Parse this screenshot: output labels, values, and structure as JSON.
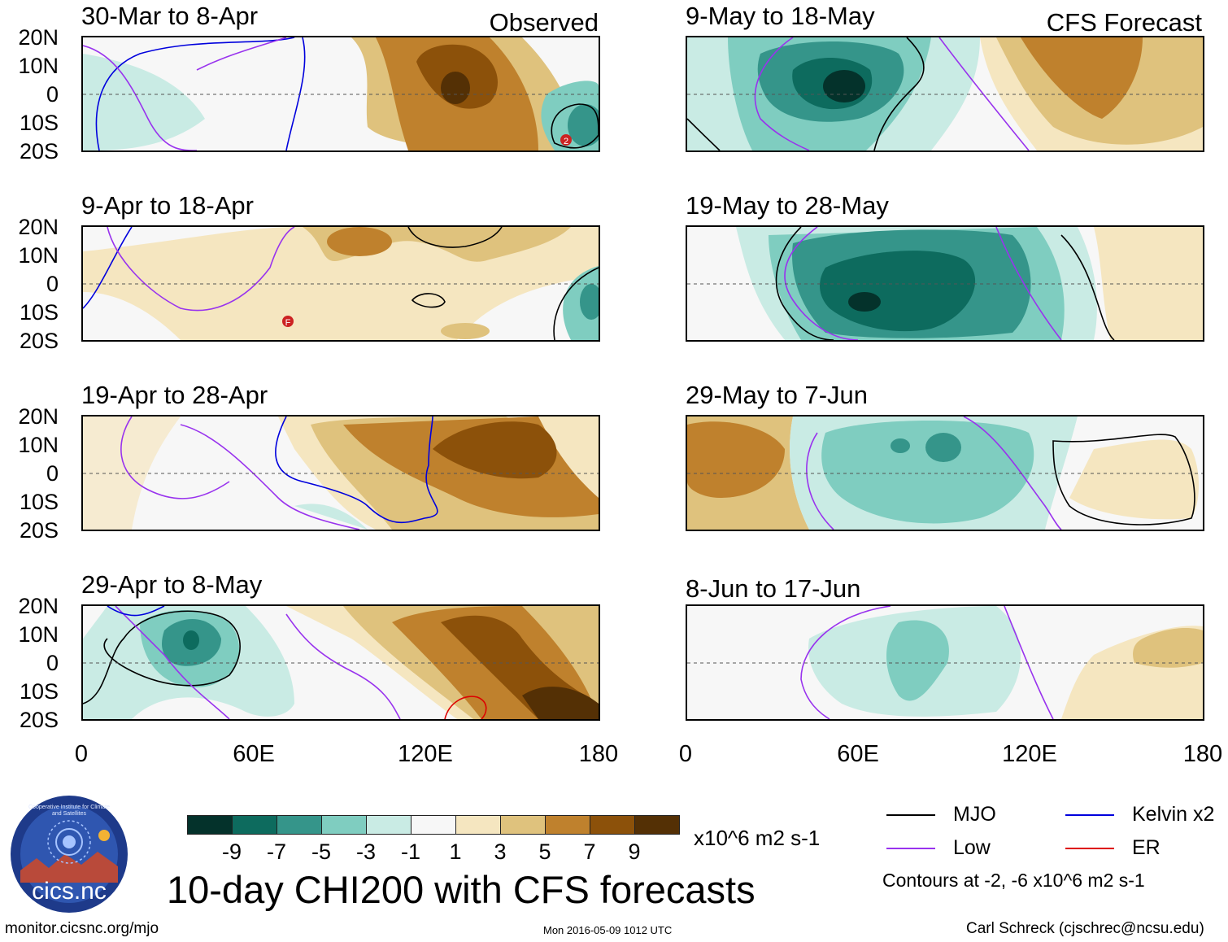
{
  "header_observed": "Observed",
  "header_forecast": "CFS Forecast",
  "panels_observed": [
    {
      "title": "30-Mar to 8-Apr"
    },
    {
      "title": "9-Apr to 18-Apr"
    },
    {
      "title": "19-Apr to 28-Apr"
    },
    {
      "title": "29-Apr to 8-May"
    }
  ],
  "panels_forecast": [
    {
      "title": "9-May to 18-May"
    },
    {
      "title": "19-May to 28-May"
    },
    {
      "title": "29-May to 7-Jun"
    },
    {
      "title": "8-Jun to 17-Jun"
    }
  ],
  "lat_ticks": [
    "20N",
    "10N",
    "0",
    "10S",
    "20S"
  ],
  "lon_ticks": [
    "0",
    "60E",
    "120E",
    "180"
  ],
  "storm_labels": [
    "2",
    "F"
  ],
  "colorbar": {
    "colors": [
      "#04322b",
      "#0d6b5e",
      "#35958a",
      "#7fcdc0",
      "#c9ebe4",
      "#f7f7f7",
      "#f5e6c0",
      "#dfc27d",
      "#bf812d",
      "#8c510a",
      "#543005"
    ],
    "labels": [
      "-9",
      "-7",
      "-5",
      "-3",
      "-1",
      "1",
      "3",
      "5",
      "7",
      "9"
    ],
    "units": "x10^6 m2 s-1"
  },
  "legend": {
    "items": [
      {
        "label": "MJO",
        "color": "#000000"
      },
      {
        "label": "Kelvin x2",
        "color": "#0000dd"
      },
      {
        "label": "Low",
        "color": "#9933ee"
      },
      {
        "label": "ER",
        "color": "#dd0000"
      }
    ],
    "contours_note": "Contours at -2, -6 x10^6 m2 s-1"
  },
  "main_title": "10-day CHI200 with CFS forecasts",
  "logo_text": "cics.nc",
  "logo_ring_text": "Cooperative Institute for Climate and Satellites",
  "footer": {
    "url": "monitor.cicsnc.org/mjo",
    "timestamp": "Mon 2016-05-09 1012 UTC",
    "author": "Carl Schreck (cjschrec@ncsu.edu)"
  }
}
